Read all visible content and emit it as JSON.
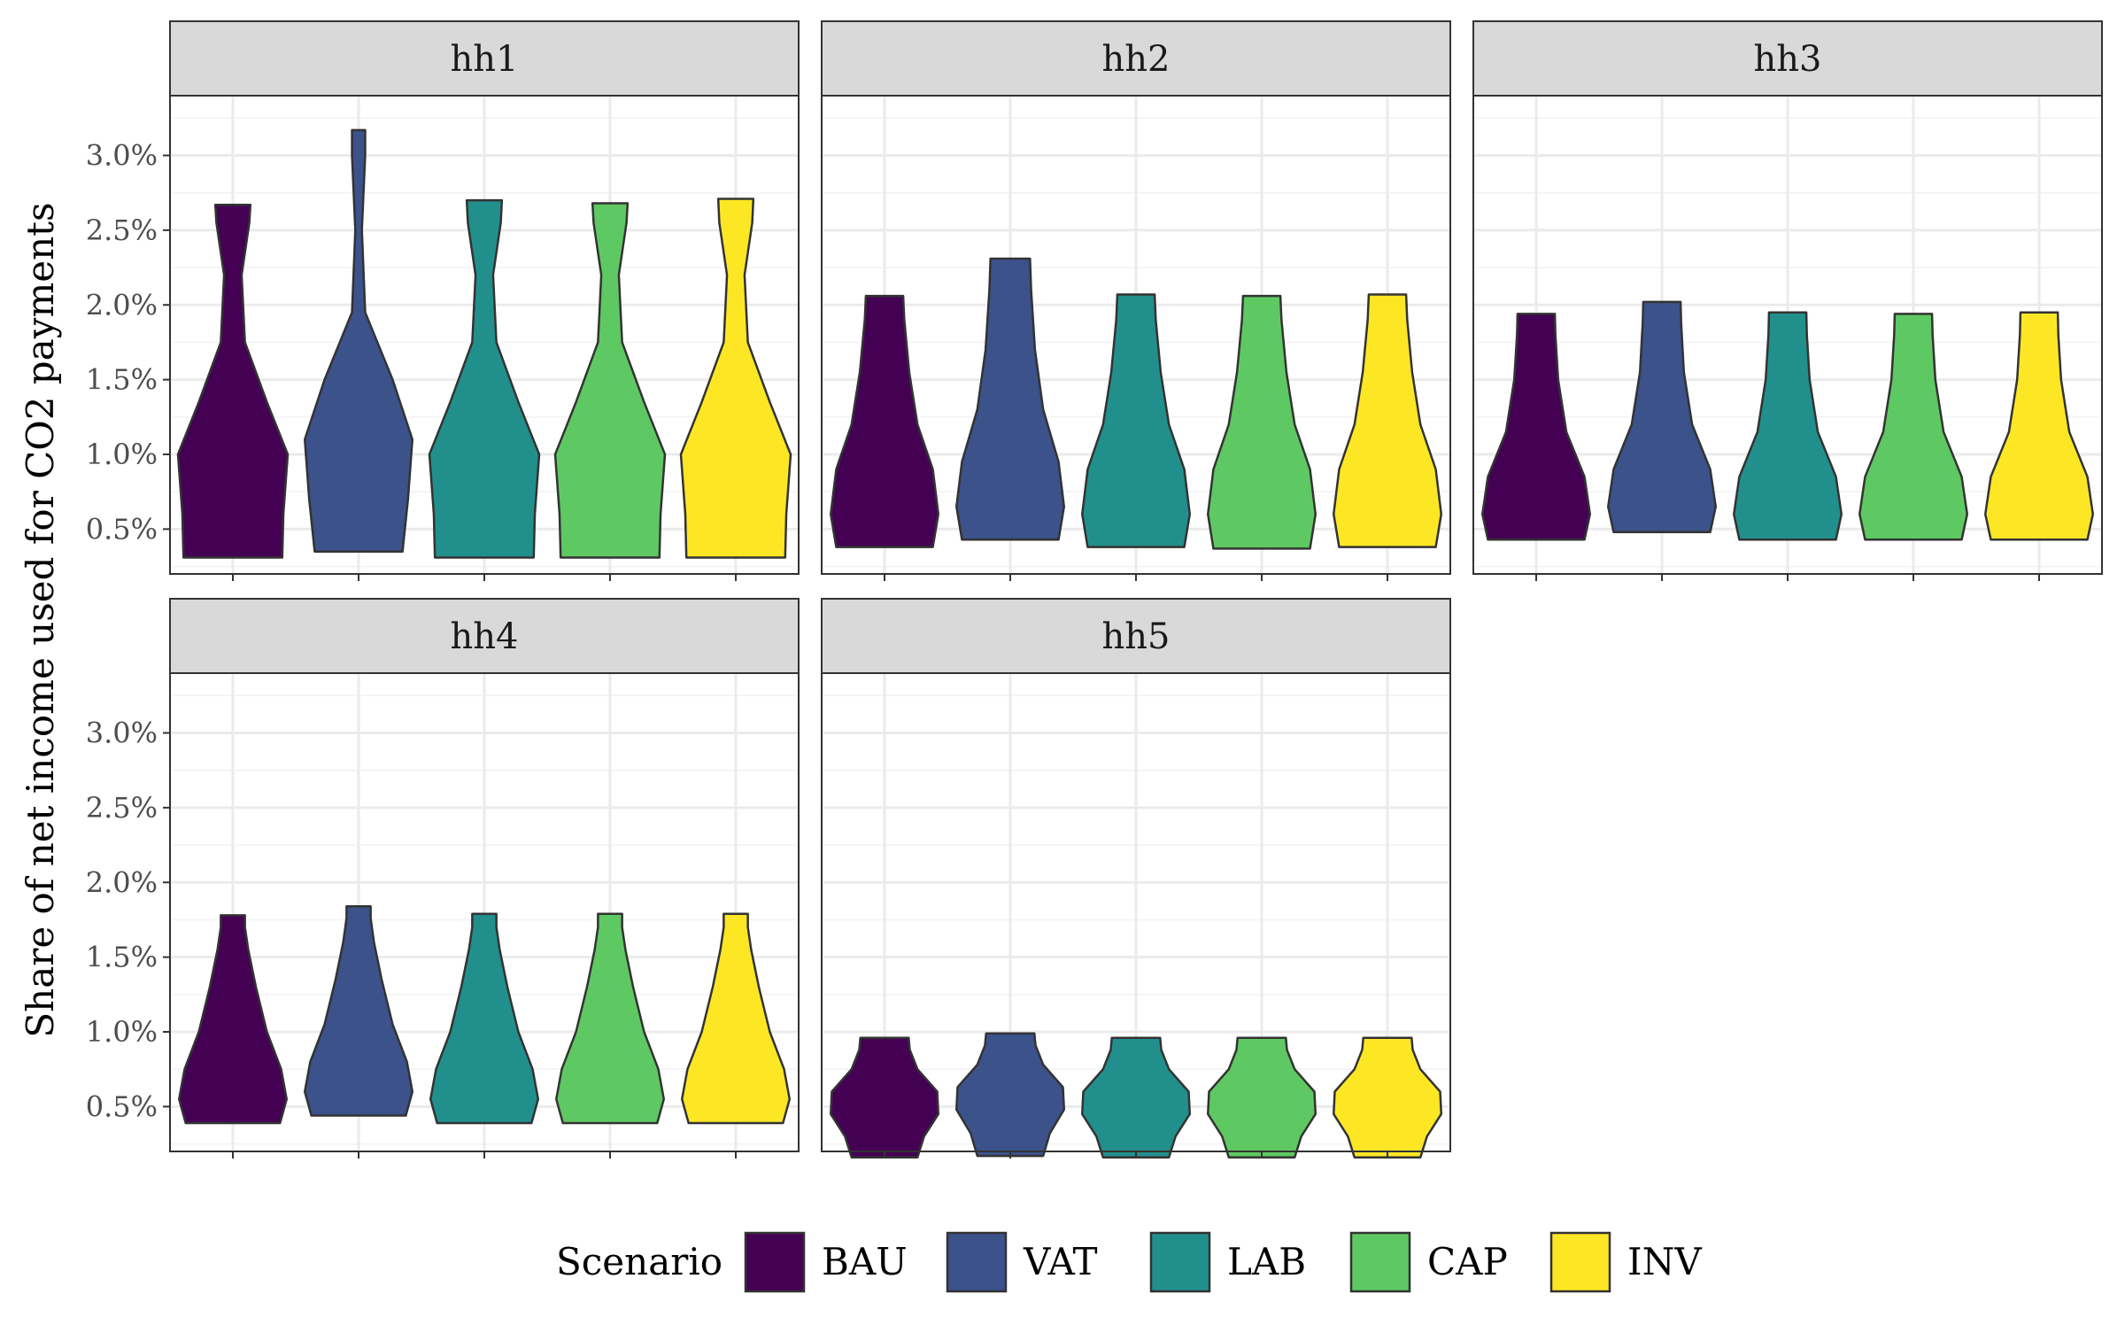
{
  "chart_data": {
    "type": "violin",
    "ylabel": "Share of net income used for CO2 payments",
    "y_ticks": [
      "0.5%",
      "1.0%",
      "1.5%",
      "2.0%",
      "2.5%",
      "3.0%"
    ],
    "y_tick_values": [
      0.5,
      1.0,
      1.5,
      2.0,
      2.5,
      3.0
    ],
    "ylim": [
      0.2,
      3.4
    ],
    "grid": true,
    "legend": {
      "title": "Scenario",
      "position": "bottom",
      "entries": [
        {
          "name": "BAU",
          "color": "#440154"
        },
        {
          "name": "VAT",
          "color": "#3b528b"
        },
        {
          "name": "LAB",
          "color": "#21908c"
        },
        {
          "name": "CAP",
          "color": "#5ec962"
        },
        {
          "name": "INV",
          "color": "#fde725"
        }
      ]
    },
    "categories": [
      "BAU",
      "VAT",
      "LAB",
      "CAP",
      "INV"
    ],
    "panels": [
      {
        "label": "hh1",
        "series": [
          {
            "name": "BAU",
            "min": 0.31,
            "max": 2.67,
            "profile": [
              [
                0.31,
                0.9
              ],
              [
                0.6,
                0.92
              ],
              [
                1.0,
                1.0
              ],
              [
                1.35,
                0.62
              ],
              [
                1.75,
                0.22
              ],
              [
                2.2,
                0.16
              ],
              [
                2.55,
                0.3
              ],
              [
                2.67,
                0.32
              ]
            ]
          },
          {
            "name": "VAT",
            "min": 0.35,
            "max": 3.17,
            "profile": [
              [
                0.35,
                0.8
              ],
              [
                0.7,
                0.9
              ],
              [
                1.1,
                0.98
              ],
              [
                1.5,
                0.62
              ],
              [
                1.95,
                0.12
              ],
              [
                2.5,
                0.06
              ],
              [
                3.0,
                0.12
              ],
              [
                3.17,
                0.12
              ]
            ]
          },
          {
            "name": "LAB",
            "min": 0.31,
            "max": 2.7,
            "profile": [
              [
                0.31,
                0.9
              ],
              [
                0.6,
                0.92
              ],
              [
                1.0,
                1.0
              ],
              [
                1.35,
                0.62
              ],
              [
                1.75,
                0.22
              ],
              [
                2.2,
                0.16
              ],
              [
                2.55,
                0.3
              ],
              [
                2.7,
                0.32
              ]
            ]
          },
          {
            "name": "CAP",
            "min": 0.31,
            "max": 2.68,
            "profile": [
              [
                0.31,
                0.9
              ],
              [
                0.6,
                0.92
              ],
              [
                1.0,
                1.0
              ],
              [
                1.35,
                0.62
              ],
              [
                1.75,
                0.22
              ],
              [
                2.2,
                0.16
              ],
              [
                2.55,
                0.3
              ],
              [
                2.68,
                0.32
              ]
            ]
          },
          {
            "name": "INV",
            "min": 0.31,
            "max": 2.71,
            "profile": [
              [
                0.31,
                0.9
              ],
              [
                0.6,
                0.92
              ],
              [
                1.0,
                1.0
              ],
              [
                1.35,
                0.62
              ],
              [
                1.75,
                0.22
              ],
              [
                2.2,
                0.16
              ],
              [
                2.55,
                0.3
              ],
              [
                2.71,
                0.32
              ]
            ]
          }
        ]
      },
      {
        "label": "hh2",
        "series": [
          {
            "name": "BAU",
            "min": 0.38,
            "max": 2.06,
            "profile": [
              [
                0.38,
                0.88
              ],
              [
                0.6,
                0.98
              ],
              [
                0.9,
                0.88
              ],
              [
                1.2,
                0.6
              ],
              [
                1.55,
                0.45
              ],
              [
                1.9,
                0.36
              ],
              [
                2.06,
                0.34
              ]
            ]
          },
          {
            "name": "VAT",
            "min": 0.43,
            "max": 2.31,
            "profile": [
              [
                0.43,
                0.88
              ],
              [
                0.65,
                0.98
              ],
              [
                0.95,
                0.88
              ],
              [
                1.3,
                0.6
              ],
              [
                1.7,
                0.45
              ],
              [
                2.1,
                0.38
              ],
              [
                2.31,
                0.36
              ]
            ]
          },
          {
            "name": "LAB",
            "min": 0.38,
            "max": 2.07,
            "profile": [
              [
                0.38,
                0.88
              ],
              [
                0.6,
                0.98
              ],
              [
                0.9,
                0.88
              ],
              [
                1.2,
                0.6
              ],
              [
                1.55,
                0.45
              ],
              [
                1.9,
                0.36
              ],
              [
                2.07,
                0.34
              ]
            ]
          },
          {
            "name": "CAP",
            "min": 0.37,
            "max": 2.06,
            "profile": [
              [
                0.37,
                0.88
              ],
              [
                0.6,
                0.98
              ],
              [
                0.9,
                0.88
              ],
              [
                1.2,
                0.6
              ],
              [
                1.55,
                0.45
              ],
              [
                1.9,
                0.36
              ],
              [
                2.06,
                0.34
              ]
            ]
          },
          {
            "name": "INV",
            "min": 0.38,
            "max": 2.07,
            "profile": [
              [
                0.38,
                0.88
              ],
              [
                0.6,
                0.98
              ],
              [
                0.9,
                0.88
              ],
              [
                1.2,
                0.6
              ],
              [
                1.55,
                0.45
              ],
              [
                1.9,
                0.36
              ],
              [
                2.07,
                0.34
              ]
            ]
          }
        ]
      },
      {
        "label": "hh3",
        "series": [
          {
            "name": "BAU",
            "min": 0.43,
            "max": 1.94,
            "profile": [
              [
                0.43,
                0.88
              ],
              [
                0.6,
                0.98
              ],
              [
                0.85,
                0.88
              ],
              [
                1.15,
                0.55
              ],
              [
                1.5,
                0.4
              ],
              [
                1.8,
                0.35
              ],
              [
                1.94,
                0.34
              ]
            ]
          },
          {
            "name": "VAT",
            "min": 0.48,
            "max": 2.02,
            "profile": [
              [
                0.48,
                0.88
              ],
              [
                0.65,
                0.98
              ],
              [
                0.9,
                0.88
              ],
              [
                1.2,
                0.55
              ],
              [
                1.55,
                0.4
              ],
              [
                1.88,
                0.35
              ],
              [
                2.02,
                0.34
              ]
            ]
          },
          {
            "name": "LAB",
            "min": 0.43,
            "max": 1.95,
            "profile": [
              [
                0.43,
                0.88
              ],
              [
                0.6,
                0.98
              ],
              [
                0.85,
                0.88
              ],
              [
                1.15,
                0.55
              ],
              [
                1.5,
                0.4
              ],
              [
                1.8,
                0.35
              ],
              [
                1.95,
                0.34
              ]
            ]
          },
          {
            "name": "CAP",
            "min": 0.43,
            "max": 1.94,
            "profile": [
              [
                0.43,
                0.88
              ],
              [
                0.6,
                0.98
              ],
              [
                0.85,
                0.88
              ],
              [
                1.15,
                0.55
              ],
              [
                1.5,
                0.4
              ],
              [
                1.8,
                0.35
              ],
              [
                1.94,
                0.34
              ]
            ]
          },
          {
            "name": "INV",
            "min": 0.43,
            "max": 1.95,
            "profile": [
              [
                0.43,
                0.88
              ],
              [
                0.6,
                0.98
              ],
              [
                0.85,
                0.88
              ],
              [
                1.15,
                0.55
              ],
              [
                1.5,
                0.4
              ],
              [
                1.8,
                0.35
              ],
              [
                1.95,
                0.34
              ]
            ]
          }
        ]
      },
      {
        "label": "hh4",
        "series": [
          {
            "name": "BAU",
            "min": 0.39,
            "max": 1.78,
            "profile": [
              [
                0.39,
                0.86
              ],
              [
                0.55,
                0.98
              ],
              [
                0.75,
                0.88
              ],
              [
                1.0,
                0.62
              ],
              [
                1.3,
                0.42
              ],
              [
                1.55,
                0.28
              ],
              [
                1.7,
                0.22
              ],
              [
                1.78,
                0.22
              ]
            ]
          },
          {
            "name": "VAT",
            "min": 0.44,
            "max": 1.84,
            "profile": [
              [
                0.44,
                0.86
              ],
              [
                0.6,
                0.98
              ],
              [
                0.8,
                0.88
              ],
              [
                1.05,
                0.62
              ],
              [
                1.35,
                0.42
              ],
              [
                1.6,
                0.28
              ],
              [
                1.76,
                0.22
              ],
              [
                1.84,
                0.22
              ]
            ]
          },
          {
            "name": "LAB",
            "min": 0.39,
            "max": 1.79,
            "profile": [
              [
                0.39,
                0.86
              ],
              [
                0.55,
                0.98
              ],
              [
                0.75,
                0.88
              ],
              [
                1.0,
                0.62
              ],
              [
                1.3,
                0.42
              ],
              [
                1.55,
                0.28
              ],
              [
                1.7,
                0.22
              ],
              [
                1.79,
                0.22
              ]
            ]
          },
          {
            "name": "CAP",
            "min": 0.39,
            "max": 1.79,
            "profile": [
              [
                0.39,
                0.86
              ],
              [
                0.55,
                0.98
              ],
              [
                0.75,
                0.88
              ],
              [
                1.0,
                0.62
              ],
              [
                1.3,
                0.42
              ],
              [
                1.55,
                0.28
              ],
              [
                1.7,
                0.22
              ],
              [
                1.79,
                0.22
              ]
            ]
          },
          {
            "name": "INV",
            "min": 0.39,
            "max": 1.79,
            "profile": [
              [
                0.39,
                0.86
              ],
              [
                0.55,
                0.98
              ],
              [
                0.75,
                0.88
              ],
              [
                1.0,
                0.62
              ],
              [
                1.3,
                0.42
              ],
              [
                1.55,
                0.28
              ],
              [
                1.7,
                0.22
              ],
              [
                1.79,
                0.22
              ]
            ]
          }
        ]
      },
      {
        "label": "hh5",
        "series": [
          {
            "name": "BAU",
            "min": 0.16,
            "max": 0.96,
            "profile": [
              [
                0.16,
                0.6
              ],
              [
                0.3,
                0.72
              ],
              [
                0.45,
                0.98
              ],
              [
                0.6,
                0.96
              ],
              [
                0.75,
                0.6
              ],
              [
                0.88,
                0.46
              ],
              [
                0.96,
                0.44
              ]
            ]
          },
          {
            "name": "VAT",
            "min": 0.17,
            "max": 0.99,
            "profile": [
              [
                0.17,
                0.6
              ],
              [
                0.32,
                0.72
              ],
              [
                0.48,
                0.98
              ],
              [
                0.63,
                0.96
              ],
              [
                0.78,
                0.6
              ],
              [
                0.91,
                0.46
              ],
              [
                0.99,
                0.44
              ]
            ]
          },
          {
            "name": "LAB",
            "min": 0.16,
            "max": 0.96,
            "profile": [
              [
                0.16,
                0.6
              ],
              [
                0.3,
                0.72
              ],
              [
                0.45,
                0.98
              ],
              [
                0.6,
                0.96
              ],
              [
                0.75,
                0.6
              ],
              [
                0.88,
                0.46
              ],
              [
                0.96,
                0.44
              ]
            ]
          },
          {
            "name": "CAP",
            "min": 0.16,
            "max": 0.96,
            "profile": [
              [
                0.16,
                0.6
              ],
              [
                0.3,
                0.72
              ],
              [
                0.45,
                0.98
              ],
              [
                0.6,
                0.96
              ],
              [
                0.75,
                0.6
              ],
              [
                0.88,
                0.46
              ],
              [
                0.96,
                0.44
              ]
            ]
          },
          {
            "name": "INV",
            "min": 0.16,
            "max": 0.96,
            "profile": [
              [
                0.16,
                0.6
              ],
              [
                0.3,
                0.72
              ],
              [
                0.45,
                0.98
              ],
              [
                0.6,
                0.96
              ],
              [
                0.75,
                0.6
              ],
              [
                0.88,
                0.46
              ],
              [
                0.96,
                0.44
              ]
            ]
          }
        ]
      }
    ]
  }
}
